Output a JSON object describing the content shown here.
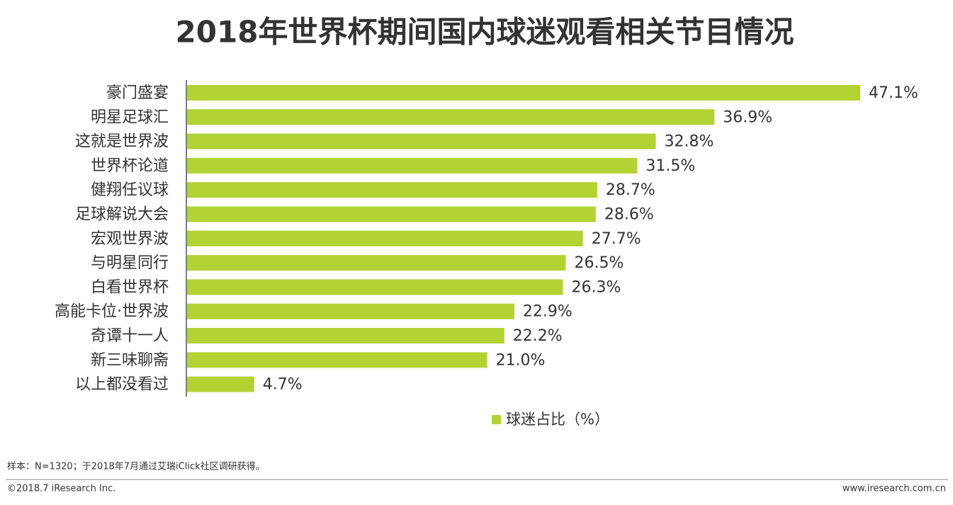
{
  "chart_data": {
    "type": "bar",
    "orientation": "horizontal",
    "title": "2018年世界杯期间国内球迷观看相关节目情况",
    "categories": [
      "豪门盛宴",
      "明星足球汇",
      "这就是世界波",
      "世界杯论道",
      "健翔任议球",
      "足球解说大会",
      "宏观世界波",
      "与明星同行",
      "白看世界杯",
      "高能卡位·世界波",
      "奇谭十一人",
      "新三味聊斋",
      "以上都没看过"
    ],
    "series": [
      {
        "name": "球迷占比（%）",
        "color": "#b3d334",
        "values": [
          47.1,
          36.9,
          32.8,
          31.5,
          28.7,
          28.6,
          27.7,
          26.5,
          26.3,
          22.9,
          22.2,
          21.0,
          4.7
        ],
        "value_labels": [
          "47.1%",
          "36.9%",
          "32.8%",
          "31.5%",
          "28.7%",
          "28.6%",
          "27.7%",
          "26.5%",
          "26.3%",
          "22.9%",
          "22.2%",
          "21.0%",
          "4.7%"
        ]
      }
    ]
  },
  "footer": {
    "note": "样本：N=1320；于2018年7月通过艾瑞iClick社区调研获得。",
    "copyright": "©2018.7 iResearch Inc.",
    "website": "www.iresearch.com.cn"
  }
}
